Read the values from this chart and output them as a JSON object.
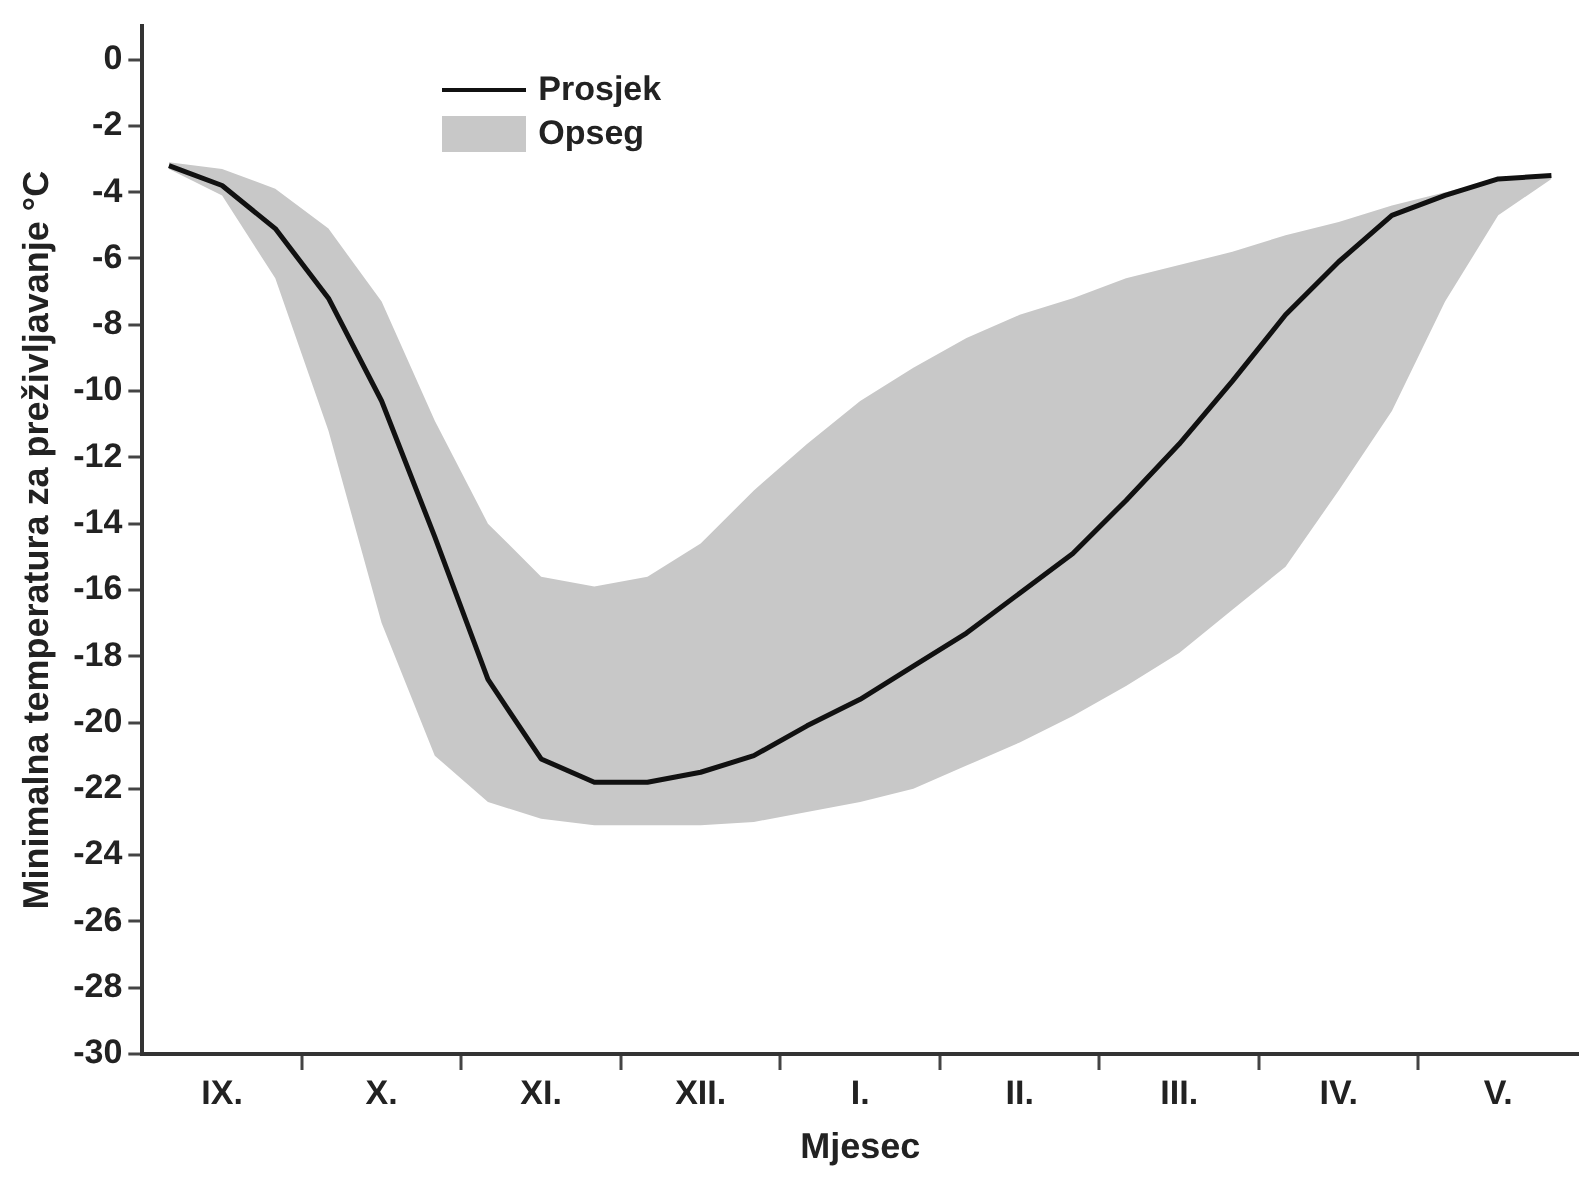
{
  "chart_data": {
    "type": "line",
    "xlabel": "Mjesec",
    "ylabel": "Minimalna temperatura za preživljavanje °C",
    "categories": [
      null,
      "IX.",
      null,
      null,
      "X.",
      null,
      null,
      "XI.",
      null,
      null,
      "XII.",
      null,
      null,
      "I.",
      null,
      null,
      "II.",
      null,
      null,
      "III.",
      null,
      null,
      "IV.",
      null,
      null,
      "V.",
      null
    ],
    "series": [
      {
        "name": "Prosjek",
        "color": "#111111",
        "values": [
          -3.2,
          -3.8,
          -5.1,
          -7.2,
          -10.3,
          -14.4,
          -18.7,
          -21.1,
          -21.8,
          -21.8,
          -21.5,
          -21.0,
          -20.1,
          -19.3,
          -18.3,
          -17.3,
          -16.1,
          -14.9,
          -13.3,
          -11.6,
          -9.7,
          -7.7,
          -6.1,
          -4.7,
          -4.1,
          -3.6,
          -3.5
        ],
        "lower": [
          -3.3,
          -4.1,
          -6.6,
          -11.2,
          -17.0,
          -21.0,
          -22.4,
          -22.9,
          -23.1,
          -23.1,
          -23.1,
          -23.0,
          -22.7,
          -22.4,
          -22.0,
          -21.3,
          -20.6,
          -19.8,
          -18.9,
          -17.9,
          -16.6,
          -15.3,
          -13.0,
          -10.6,
          -7.3,
          -4.7,
          -3.6
        ],
        "upper": [
          -3.1,
          -3.3,
          -3.9,
          -5.1,
          -7.3,
          -10.9,
          -14.0,
          -15.6,
          -15.9,
          -15.6,
          -14.6,
          -13.0,
          -11.6,
          -10.3,
          -9.3,
          -8.4,
          -7.7,
          -7.2,
          -6.6,
          -6.2,
          -5.8,
          -5.3,
          -4.9,
          -4.4,
          -4.0,
          -3.6,
          -3.5
        ]
      }
    ],
    "annotations": [
      "Opseg"
    ],
    "ylim": [
      -30,
      1
    ],
    "yticks": [
      -30,
      -28,
      -26,
      -24,
      -22,
      -20,
      -18,
      -16,
      -14,
      -12,
      -10,
      -8,
      -6,
      -4,
      -2,
      0
    ],
    "grid": false,
    "legend": "top left",
    "marker": "none",
    "line_style": "solid"
  }
}
